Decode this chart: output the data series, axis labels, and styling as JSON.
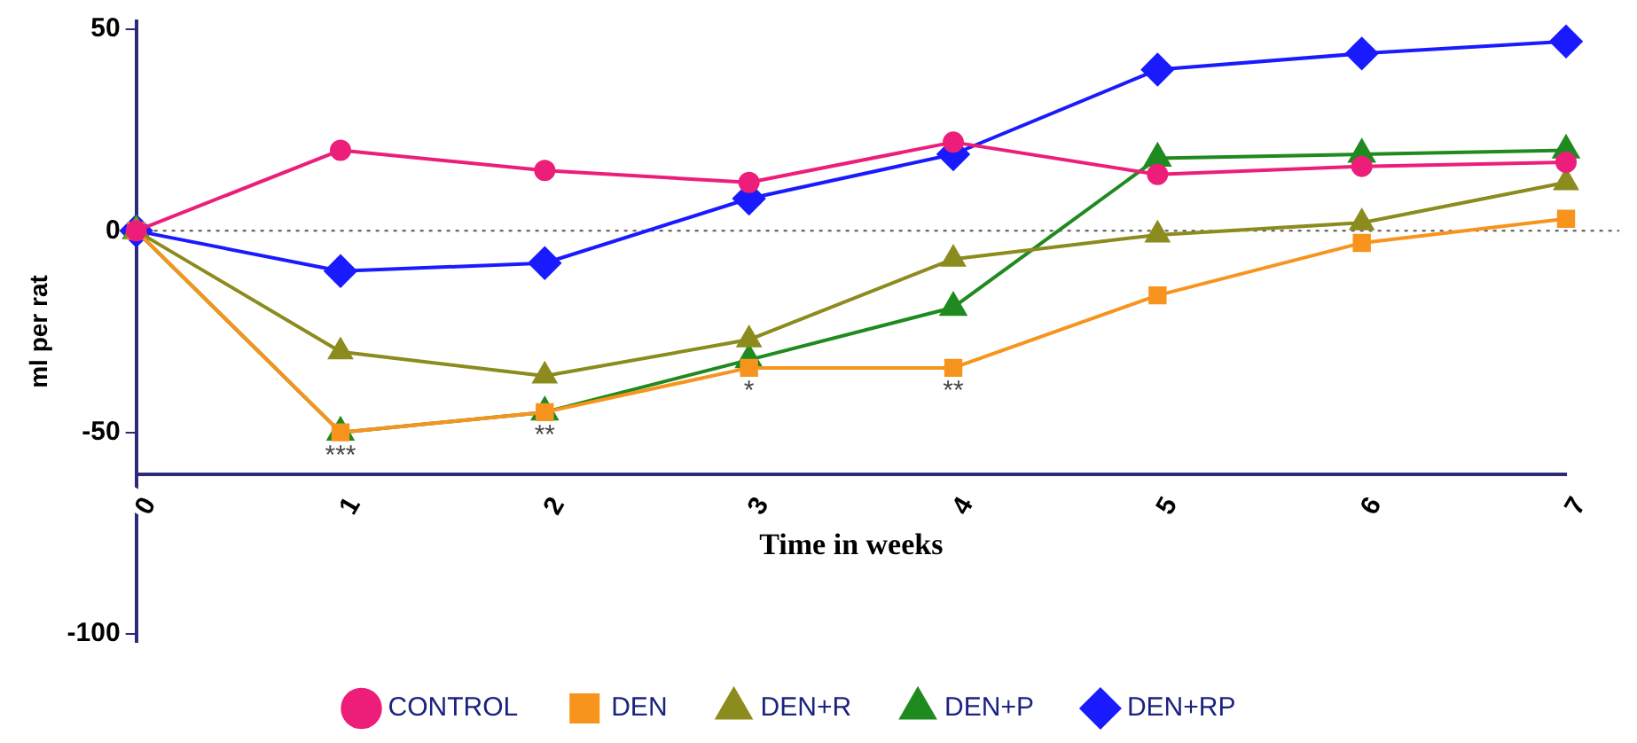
{
  "chart_data": {
    "type": "line",
    "xlabel": "Time in weeks",
    "ylabel": "ml per rat",
    "x": [
      0,
      1,
      2,
      3,
      4,
      5,
      6,
      7
    ],
    "xlim": [
      0,
      7
    ],
    "xticks": [
      0,
      1,
      2,
      3,
      4,
      5,
      6,
      7
    ],
    "ylim": [
      -102,
      52
    ],
    "yticks": [
      -100,
      -50,
      0,
      50
    ],
    "grid": false,
    "legend": "bottom",
    "line_style": "solid",
    "series": [
      {
        "name": "CONTROL",
        "color": "#ec1e79",
        "marker": "circle",
        "values": [
          0,
          20,
          15,
          12,
          22,
          14,
          16,
          17
        ]
      },
      {
        "name": "DEN",
        "color": "#f7941d",
        "marker": "square",
        "values": [
          0,
          -50,
          -45,
          -34,
          -34,
          -16,
          -3,
          3
        ]
      },
      {
        "name": "DEN+R",
        "color": "#8b8b1e",
        "marker": "triangle",
        "values": [
          0,
          -30,
          -36,
          -27,
          -7,
          -1,
          2,
          12
        ]
      },
      {
        "name": "DEN+P",
        "color": "#1f8a1f",
        "marker": "triangle",
        "values": [
          0,
          -50,
          -45,
          -32,
          -19,
          18,
          19,
          20
        ]
      },
      {
        "name": "DEN+RP",
        "color": "#1a1aff",
        "marker": "diamond",
        "values": [
          0,
          -10,
          -8,
          8,
          19,
          40,
          44,
          47
        ]
      }
    ],
    "ref_lines": [
      {
        "axis": "y",
        "value": 0,
        "color": "#555555",
        "line_style": "dotted"
      }
    ],
    "annotations": [
      {
        "text": "***",
        "x": 1,
        "y": -50
      },
      {
        "text": "**",
        "x": 2,
        "y": -45
      },
      {
        "text": "*",
        "x": 3,
        "y": -34
      },
      {
        "text": "**",
        "x": 4,
        "y": -34
      }
    ]
  }
}
